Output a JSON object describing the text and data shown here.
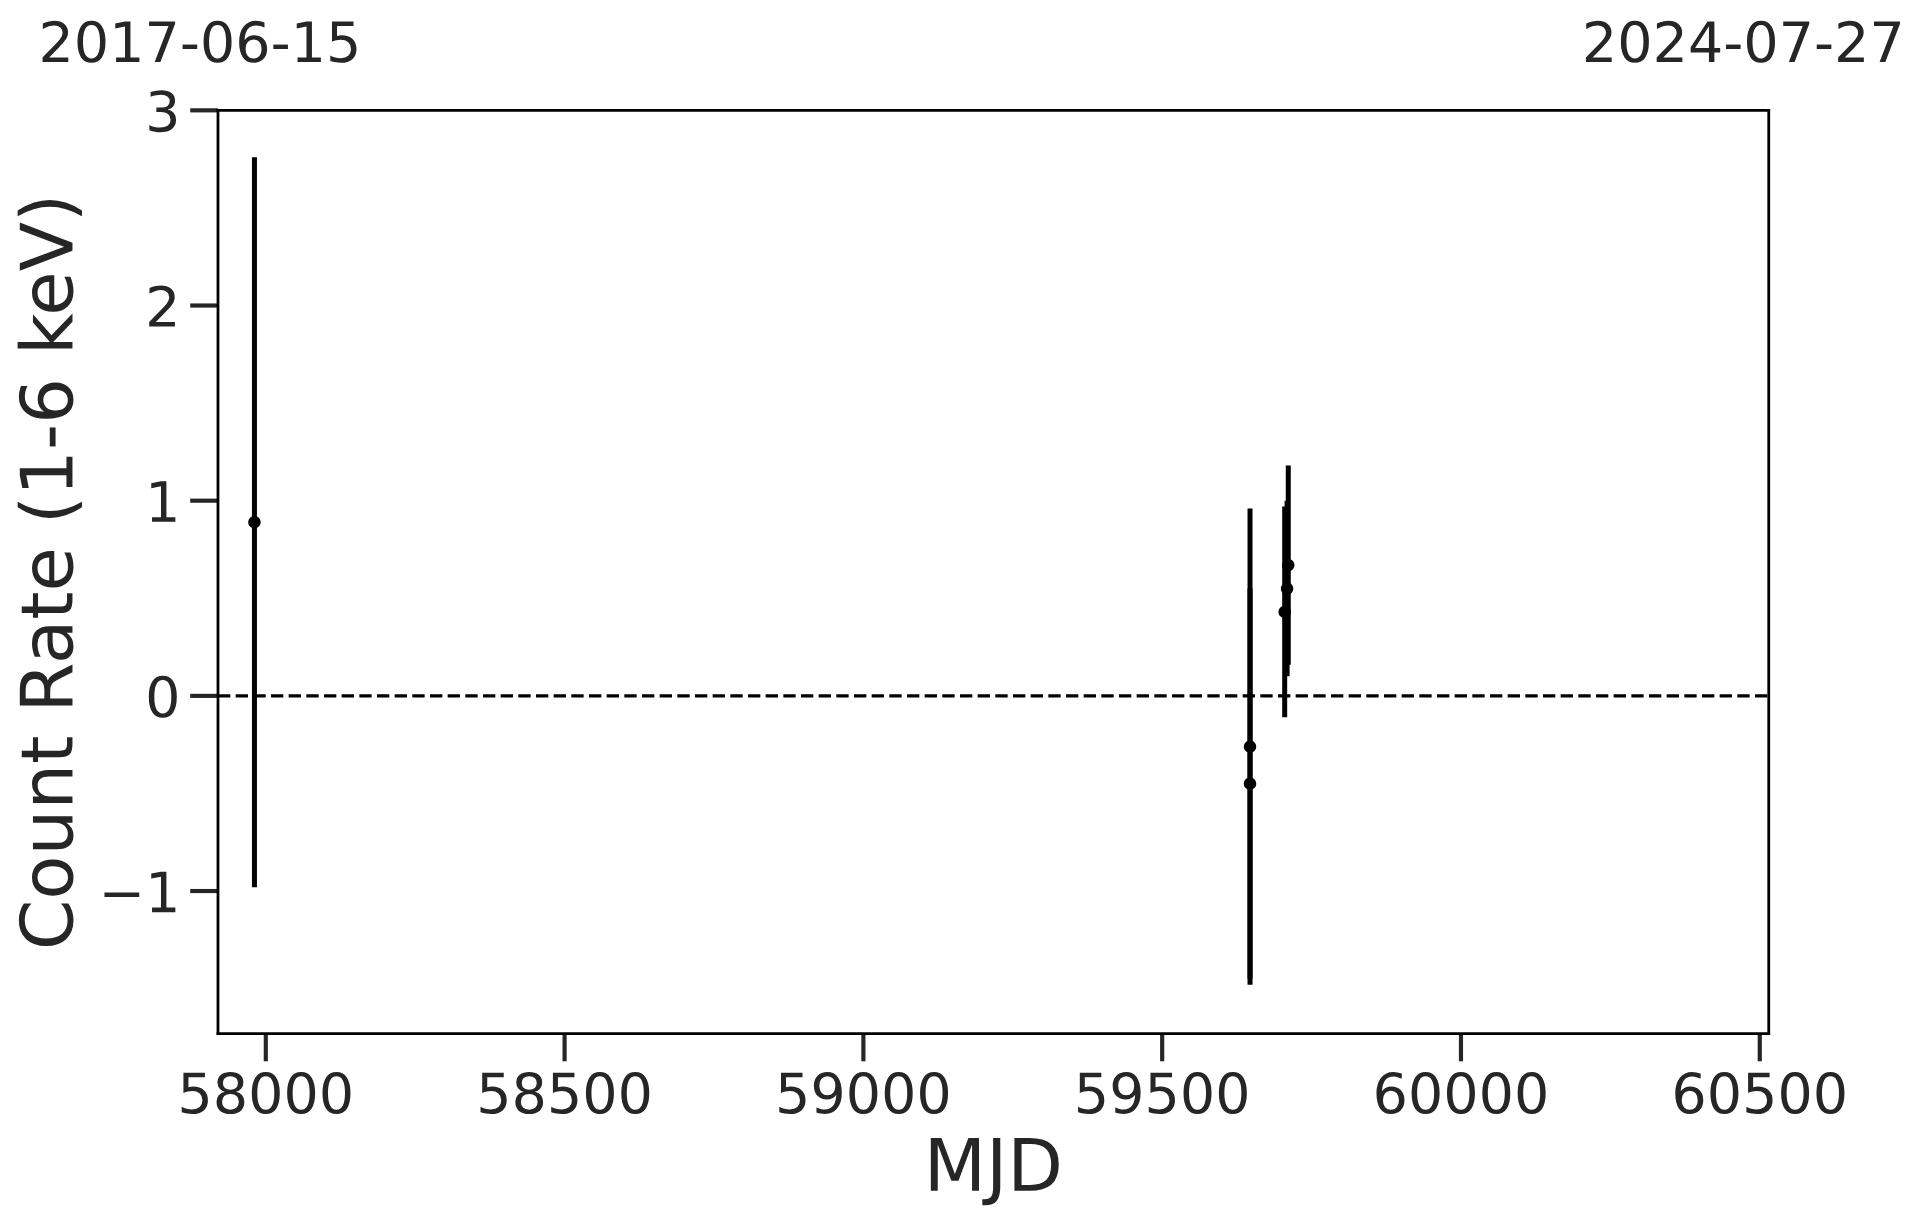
{
  "chart_data": {
    "type": "scatter",
    "xlabel": "MJD",
    "ylabel": "Count Rate (1-6 keV)",
    "annotations": [
      "2017-06-15",
      "2024-07-27"
    ],
    "x": [
      57981,
      59647,
      59647,
      59705,
      59709,
      59711
    ],
    "values": [
      0.89,
      -0.26,
      -0.45,
      0.43,
      0.55,
      0.67
    ],
    "errors": [
      1.87,
      1.22,
      1.0,
      0.54,
      0.45,
      0.51
    ],
    "color": "#000000",
    "marker": "circle",
    "xlim": [
      57920,
      60515
    ],
    "xticks": [
      58000,
      58500,
      59000,
      59500,
      60000,
      60500
    ],
    "ylim": [
      -1.73,
      3
    ],
    "yticks": [
      -1,
      0,
      1,
      2,
      3
    ],
    "ref_lines": [
      {
        "axis": "y",
        "value": 0,
        "color": "#000000",
        "line_style": "dashed"
      }
    ],
    "grid": false,
    "legend": false
  }
}
